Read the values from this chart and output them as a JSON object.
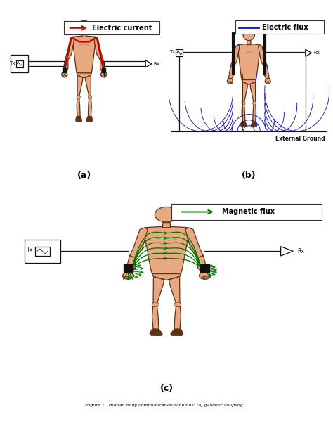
{
  "skin_color": "#E8A882",
  "skin_outline": "#5C3317",
  "bg_color": "#ffffff",
  "red": "#CC0000",
  "blue": "#1a1aaa",
  "green": "#007700",
  "black": "#111111",
  "legend_a_text": "Electric current",
  "legend_b_text": "Electric flux",
  "legend_c_text": "Magnetic flux",
  "panel_a_label": "(a)",
  "panel_b_label": "(b)",
  "panel_c_label": "(c)",
  "tx_label": "Tx",
  "rx_label": "Rx",
  "external_ground": "External Ground",
  "caption": "Figure 1.  Human body communication schemes: (a) galvanic coupling...",
  "body_lw": 1.0,
  "circuit_lw": 0.9
}
